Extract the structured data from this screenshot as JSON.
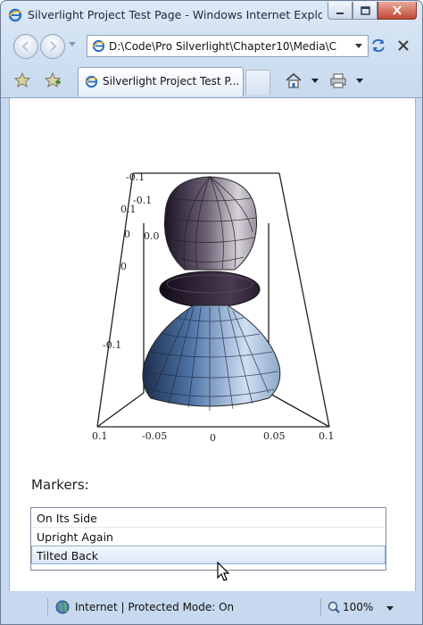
{
  "window": {
    "title": "Silverlight Project Test Page - Windows Internet Explorer"
  },
  "nav": {
    "address": "D:\\Code\\Pro Silverlight\\Chapter10\\Media\\Cl"
  },
  "tabs": [
    {
      "label": "Silverlight Project Test P..."
    }
  ],
  "scene": {
    "axis_labels_top": [
      "-0.1",
      "-0.1"
    ],
    "axis_labels_left": [
      "0.1",
      "0",
      "0.0",
      "0",
      "-0.1"
    ],
    "axis_labels_bottom": [
      "0.1",
      "-0.05",
      "0",
      "0.05",
      "0.1"
    ]
  },
  "markers": {
    "label": "Markers:",
    "items": [
      "On Its Side",
      "Upright Again",
      "Tilted Back"
    ],
    "selected_index": 2
  },
  "status": {
    "zone": "Internet | Protected Mode: On",
    "zoom": "100%"
  }
}
